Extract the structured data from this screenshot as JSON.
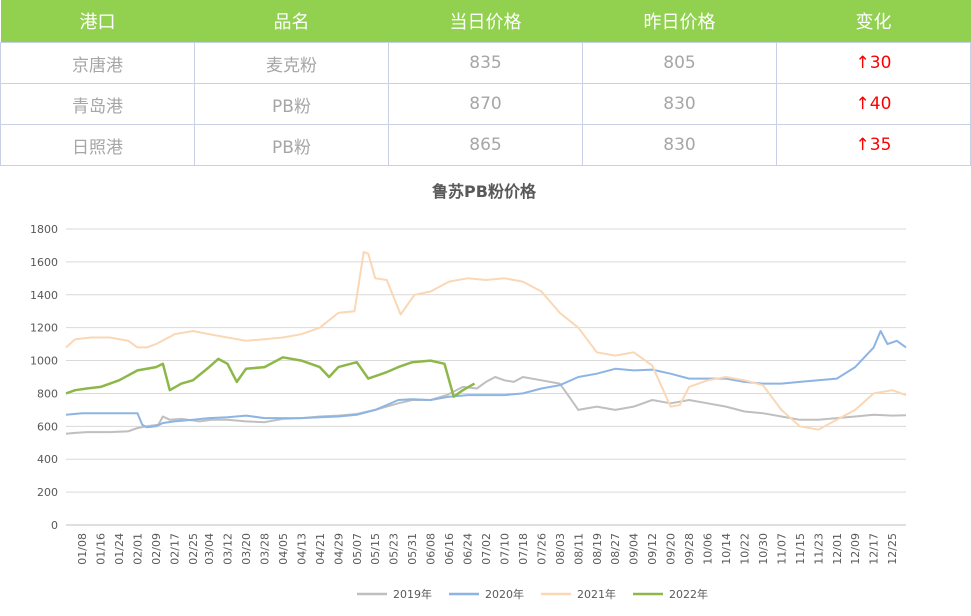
{
  "table": {
    "headers": [
      "港口",
      "品名",
      "当日价格",
      "昨日价格",
      "变化"
    ],
    "rows": [
      {
        "port": "京唐港",
        "product": "麦克粉",
        "today": "835",
        "yesterday": "805",
        "change": "↑30"
      },
      {
        "port": "青岛港",
        "product": "PB粉",
        "today": "870",
        "yesterday": "830",
        "change": "↑40"
      },
      {
        "port": "日照港",
        "product": "PB粉",
        "today": "865",
        "yesterday": "830",
        "change": "↑35"
      }
    ]
  },
  "chart_data": {
    "type": "line",
    "title": "鲁苏PB粉价格",
    "xlabel": "",
    "ylabel": "",
    "ylim": [
      0,
      1800
    ],
    "yticks": [
      0,
      200,
      400,
      600,
      800,
      1000,
      1200,
      1400,
      1600,
      1800
    ],
    "grid": true,
    "legend_position": "bottom",
    "x_ticks": [
      "01/08",
      "01/16",
      "01/24",
      "02/01",
      "02/09",
      "02/17",
      "02/25",
      "03/04",
      "03/12",
      "03/20",
      "03/28",
      "04/05",
      "04/13",
      "04/21",
      "04/29",
      "05/07",
      "05/15",
      "05/23",
      "05/31",
      "06/08",
      "06/16",
      "06/24",
      "07/02",
      "07/10",
      "07/18",
      "07/26",
      "08/03",
      "08/11",
      "08/19",
      "08/27",
      "09/04",
      "09/12",
      "09/20",
      "09/28",
      "10/06",
      "10/14",
      "10/22",
      "10/30",
      "11/07",
      "11/15",
      "11/23",
      "12/01",
      "12/09",
      "12/17",
      "12/25"
    ],
    "colors": {
      "2019年": "#bfbfbf",
      "2020年": "#8eb4e3",
      "2021年": "#fad7b5",
      "2022年": "#8db849"
    },
    "series": [
      {
        "name": "2019年",
        "points": [
          [
            "01/01",
            555
          ],
          [
            "01/05",
            560
          ],
          [
            "01/10",
            565
          ],
          [
            "01/20",
            565
          ],
          [
            "01/28",
            570
          ],
          [
            "02/01",
            590
          ],
          [
            "02/05",
            600
          ],
          [
            "02/10",
            610
          ],
          [
            "02/12",
            660
          ],
          [
            "02/15",
            640
          ],
          [
            "02/20",
            645
          ],
          [
            "02/28",
            630
          ],
          [
            "03/05",
            640
          ],
          [
            "03/12",
            640
          ],
          [
            "03/20",
            630
          ],
          [
            "03/28",
            625
          ],
          [
            "04/05",
            645
          ],
          [
            "04/13",
            650
          ],
          [
            "04/21",
            660
          ],
          [
            "04/29",
            665
          ],
          [
            "05/07",
            675
          ],
          [
            "05/15",
            700
          ],
          [
            "05/20",
            720
          ],
          [
            "05/25",
            740
          ],
          [
            "05/31",
            760
          ],
          [
            "06/08",
            760
          ],
          [
            "06/15",
            790
          ],
          [
            "06/22",
            840
          ],
          [
            "06/28",
            830
          ],
          [
            "07/02",
            870
          ],
          [
            "07/06",
            900
          ],
          [
            "07/10",
            880
          ],
          [
            "07/14",
            870
          ],
          [
            "07/18",
            900
          ],
          [
            "07/26",
            880
          ],
          [
            "08/03",
            860
          ],
          [
            "08/07",
            780
          ],
          [
            "08/11",
            700
          ],
          [
            "08/19",
            720
          ],
          [
            "08/27",
            700
          ],
          [
            "09/04",
            720
          ],
          [
            "09/12",
            760
          ],
          [
            "09/20",
            740
          ],
          [
            "09/28",
            760
          ],
          [
            "10/06",
            740
          ],
          [
            "10/14",
            720
          ],
          [
            "10/22",
            690
          ],
          [
            "10/30",
            680
          ],
          [
            "11/07",
            660
          ],
          [
            "11/15",
            640
          ],
          [
            "11/23",
            640
          ],
          [
            "12/01",
            650
          ],
          [
            "12/09",
            660
          ],
          [
            "12/17",
            670
          ],
          [
            "12/25",
            665
          ],
          [
            "12/31",
            668
          ]
        ]
      },
      {
        "name": "2020年",
        "points": [
          [
            "01/01",
            670
          ],
          [
            "01/08",
            680
          ],
          [
            "01/16",
            680
          ],
          [
            "01/24",
            680
          ],
          [
            "02/01",
            680
          ],
          [
            "02/03",
            610
          ],
          [
            "02/05",
            595
          ],
          [
            "02/09",
            600
          ],
          [
            "02/12",
            620
          ],
          [
            "02/17",
            630
          ],
          [
            "02/25",
            640
          ],
          [
            "03/04",
            650
          ],
          [
            "03/12",
            655
          ],
          [
            "03/20",
            665
          ],
          [
            "03/28",
            650
          ],
          [
            "04/05",
            650
          ],
          [
            "04/13",
            650
          ],
          [
            "04/21",
            655
          ],
          [
            "04/29",
            660
          ],
          [
            "05/07",
            670
          ],
          [
            "05/15",
            700
          ],
          [
            "05/20",
            730
          ],
          [
            "05/25",
            760
          ],
          [
            "05/31",
            765
          ],
          [
            "06/08",
            760
          ],
          [
            "06/16",
            780
          ],
          [
            "06/24",
            790
          ],
          [
            "07/02",
            790
          ],
          [
            "07/10",
            790
          ],
          [
            "07/18",
            800
          ],
          [
            "07/26",
            830
          ],
          [
            "08/03",
            850
          ],
          [
            "08/11",
            900
          ],
          [
            "08/19",
            920
          ],
          [
            "08/27",
            950
          ],
          [
            "09/04",
            940
          ],
          [
            "09/12",
            945
          ],
          [
            "09/20",
            920
          ],
          [
            "09/28",
            890
          ],
          [
            "10/06",
            890
          ],
          [
            "10/14",
            890
          ],
          [
            "10/22",
            870
          ],
          [
            "10/30",
            860
          ],
          [
            "11/07",
            860
          ],
          [
            "11/15",
            870
          ],
          [
            "11/23",
            880
          ],
          [
            "12/01",
            890
          ],
          [
            "12/09",
            960
          ],
          [
            "12/17",
            1080
          ],
          [
            "12/20",
            1180
          ],
          [
            "12/23",
            1100
          ],
          [
            "12/27",
            1120
          ],
          [
            "12/31",
            1080
          ]
        ]
      },
      {
        "name": "2021年",
        "points": [
          [
            "01/01",
            1080
          ],
          [
            "01/05",
            1130
          ],
          [
            "01/12",
            1140
          ],
          [
            "01/20",
            1140
          ],
          [
            "01/28",
            1120
          ],
          [
            "02/01",
            1080
          ],
          [
            "02/05",
            1080
          ],
          [
            "02/09",
            1100
          ],
          [
            "02/17",
            1160
          ],
          [
            "02/25",
            1180
          ],
          [
            "03/04",
            1160
          ],
          [
            "03/12",
            1140
          ],
          [
            "03/20",
            1120
          ],
          [
            "03/28",
            1130
          ],
          [
            "04/05",
            1140
          ],
          [
            "04/13",
            1160
          ],
          [
            "04/21",
            1200
          ],
          [
            "04/29",
            1290
          ],
          [
            "05/06",
            1300
          ],
          [
            "05/10",
            1660
          ],
          [
            "05/12",
            1650
          ],
          [
            "05/15",
            1500
          ],
          [
            "05/20",
            1490
          ],
          [
            "05/26",
            1280
          ],
          [
            "06/01",
            1400
          ],
          [
            "06/08",
            1420
          ],
          [
            "06/16",
            1480
          ],
          [
            "06/24",
            1500
          ],
          [
            "07/02",
            1490
          ],
          [
            "07/10",
            1500
          ],
          [
            "07/18",
            1480
          ],
          [
            "07/26",
            1420
          ],
          [
            "08/03",
            1290
          ],
          [
            "08/11",
            1200
          ],
          [
            "08/19",
            1050
          ],
          [
            "08/27",
            1030
          ],
          [
            "09/04",
            1050
          ],
          [
            "09/12",
            970
          ],
          [
            "09/20",
            720
          ],
          [
            "09/24",
            730
          ],
          [
            "09/28",
            840
          ],
          [
            "10/06",
            880
          ],
          [
            "10/14",
            900
          ],
          [
            "10/22",
            880
          ],
          [
            "10/30",
            850
          ],
          [
            "11/07",
            700
          ],
          [
            "11/15",
            600
          ],
          [
            "11/23",
            580
          ],
          [
            "12/01",
            640
          ],
          [
            "12/09",
            700
          ],
          [
            "12/17",
            800
          ],
          [
            "12/25",
            820
          ],
          [
            "12/31",
            790
          ]
        ]
      },
      {
        "name": "2022年",
        "points": [
          [
            "01/01",
            800
          ],
          [
            "01/05",
            820
          ],
          [
            "01/10",
            830
          ],
          [
            "01/16",
            840
          ],
          [
            "01/24",
            880
          ],
          [
            "02/01",
            940
          ],
          [
            "02/09",
            960
          ],
          [
            "02/12",
            980
          ],
          [
            "02/15",
            820
          ],
          [
            "02/20",
            860
          ],
          [
            "02/25",
            880
          ],
          [
            "03/04",
            960
          ],
          [
            "03/08",
            1010
          ],
          [
            "03/12",
            980
          ],
          [
            "03/16",
            870
          ],
          [
            "03/20",
            950
          ],
          [
            "03/28",
            960
          ],
          [
            "04/05",
            1020
          ],
          [
            "04/13",
            1000
          ],
          [
            "04/21",
            960
          ],
          [
            "04/25",
            900
          ],
          [
            "04/29",
            960
          ],
          [
            "05/07",
            990
          ],
          [
            "05/12",
            890
          ],
          [
            "05/20",
            930
          ],
          [
            "05/25",
            960
          ],
          [
            "05/31",
            990
          ],
          [
            "06/08",
            1000
          ],
          [
            "06/14",
            980
          ],
          [
            "06/18",
            780
          ],
          [
            "06/22",
            820
          ],
          [
            "06/27",
            860
          ]
        ]
      }
    ]
  }
}
